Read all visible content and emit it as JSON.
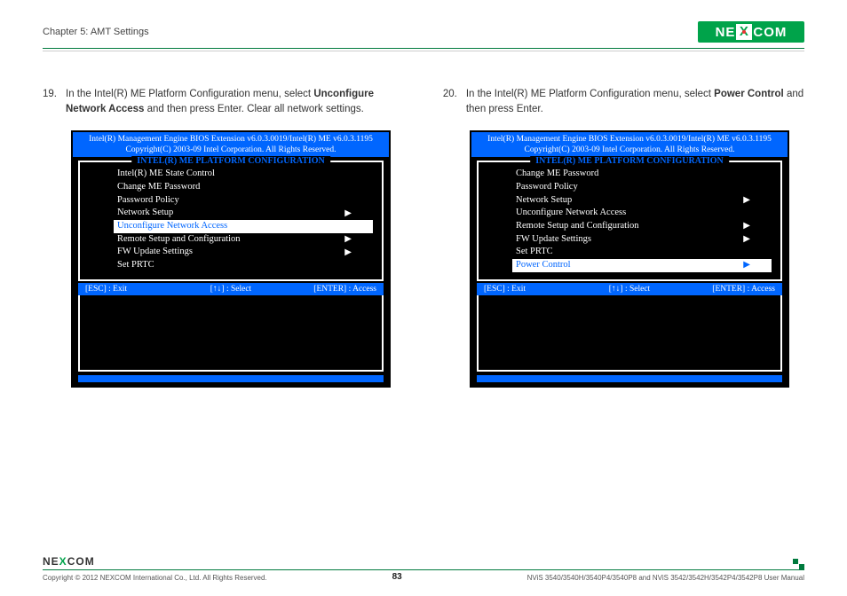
{
  "header": {
    "chapter": "Chapter 5: AMT Settings",
    "logo": {
      "left": "NE",
      "mid": "X",
      "right": "COM"
    }
  },
  "steps": {
    "left": {
      "num": "19.",
      "text_prefix": "In the Intel(R) ME Platform Configuration menu, select ",
      "bold1": "Unconfigure Network Access",
      "text_mid": " and then press Enter. Clear all network settings."
    },
    "right": {
      "num": "20.",
      "text_prefix": "In the Intel(R) ME Platform Configuration menu, select ",
      "bold1": "Power Control",
      "text_mid": " and then press Enter."
    }
  },
  "bios": {
    "header_line1": "Intel(R) Management Engine BIOS Extension v6.0.3.0019/Intel(R) ME v6.0.3.1195",
    "header_line2": "Copyright(C) 2003-09 Intel Corporation. All Rights Reserved.",
    "box_title": "INTEL(R) ME PLATFORM CONFIGURATION",
    "footer": {
      "esc": "[ESC] : Exit",
      "select": "[↑↓] : Select",
      "enter": "[ENTER] : Access"
    }
  },
  "menu_left": [
    {
      "label": "Intel(R) ME State Control",
      "arrow": false,
      "selected": false
    },
    {
      "label": "Change ME Password",
      "arrow": false,
      "selected": false
    },
    {
      "label": "Password Policy",
      "arrow": false,
      "selected": false
    },
    {
      "label": "Network Setup",
      "arrow": true,
      "selected": false
    },
    {
      "label": "Unconfigure Network Access",
      "arrow": false,
      "selected": true
    },
    {
      "label": "Remote Setup and Configuration",
      "arrow": true,
      "selected": false
    },
    {
      "label": "FW Update Settings",
      "arrow": true,
      "selected": false
    },
    {
      "label": "Set PRTC",
      "arrow": false,
      "selected": false
    }
  ],
  "menu_right": [
    {
      "label": "Change ME Password",
      "arrow": false,
      "selected": false
    },
    {
      "label": "Password Policy",
      "arrow": false,
      "selected": false
    },
    {
      "label": "Network Setup",
      "arrow": true,
      "selected": false
    },
    {
      "label": "Unconfigure Network Access",
      "arrow": false,
      "selected": false
    },
    {
      "label": "Remote Setup and Configuration",
      "arrow": true,
      "selected": false
    },
    {
      "label": "FW Update Settings",
      "arrow": true,
      "selected": false
    },
    {
      "label": "Set PRTC",
      "arrow": false,
      "selected": false
    },
    {
      "label": "Power Control",
      "arrow": true,
      "selected": true
    }
  ],
  "footer": {
    "logo": "NE COM",
    "copyright": "Copyright © 2012 NEXCOM International Co., Ltd. All Rights Reserved.",
    "page": "83",
    "manual": "NViS 3540/3540H/3540P4/3540P8 and NViS 3542/3542H/3542P4/3542P8 User Manual"
  },
  "style": {
    "accent_blue": "#0066ff",
    "brand_green": "#00a34a"
  }
}
